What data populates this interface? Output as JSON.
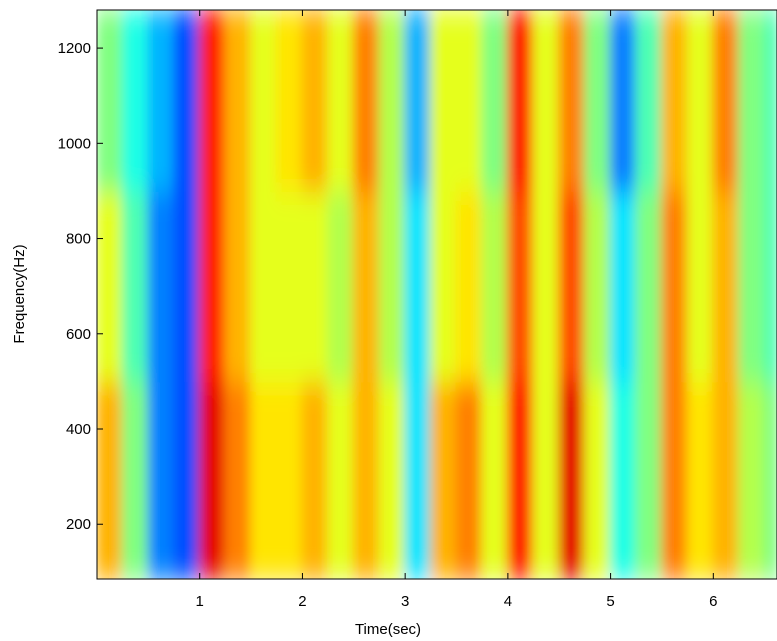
{
  "chart_data": {
    "type": "spectrogram",
    "xlabel": "Time(sec)",
    "ylabel": "Frequency(Hz)",
    "time_edges": [
      0,
      0.25,
      0.5,
      0.75,
      1,
      1.25,
      1.5,
      1.75,
      2,
      2.25,
      2.5,
      2.75,
      3,
      3.25,
      3.5,
      3.75,
      4,
      4.25,
      4.5,
      4.75,
      5,
      5.25,
      5.5,
      5.75,
      6,
      6.25,
      6.5,
      6.62
    ],
    "frequency_edges": [
      85,
      500,
      900,
      1280
    ],
    "z": [
      [
        0.7,
        0.5,
        0.25,
        0.2,
        0.9,
        0.75,
        0.65,
        0.65,
        0.7,
        0.6,
        0.7,
        0.6,
        0.35,
        0.7,
        0.75,
        0.6,
        0.85,
        0.6,
        0.9,
        0.6,
        0.4,
        0.5,
        0.75,
        0.65,
        0.7,
        0.55,
        0.5
      ],
      [
        0.6,
        0.45,
        0.25,
        0.2,
        0.85,
        0.7,
        0.6,
        0.6,
        0.6,
        0.55,
        0.7,
        0.55,
        0.35,
        0.6,
        0.65,
        0.55,
        0.8,
        0.6,
        0.8,
        0.55,
        0.35,
        0.5,
        0.75,
        0.6,
        0.7,
        0.5,
        0.45
      ],
      [
        0.5,
        0.4,
        0.3,
        0.2,
        0.85,
        0.7,
        0.6,
        0.65,
        0.7,
        0.6,
        0.75,
        0.55,
        0.3,
        0.6,
        0.6,
        0.5,
        0.85,
        0.6,
        0.75,
        0.5,
        0.25,
        0.45,
        0.7,
        0.6,
        0.75,
        0.5,
        0.45
      ]
    ],
    "xlim": [
      0,
      6.62
    ],
    "ylim": [
      85,
      1280
    ],
    "xticks": [
      1,
      2,
      3,
      4,
      5,
      6
    ],
    "yticks": [
      200,
      400,
      600,
      800,
      1000,
      1200
    ],
    "colormap": "jet"
  }
}
